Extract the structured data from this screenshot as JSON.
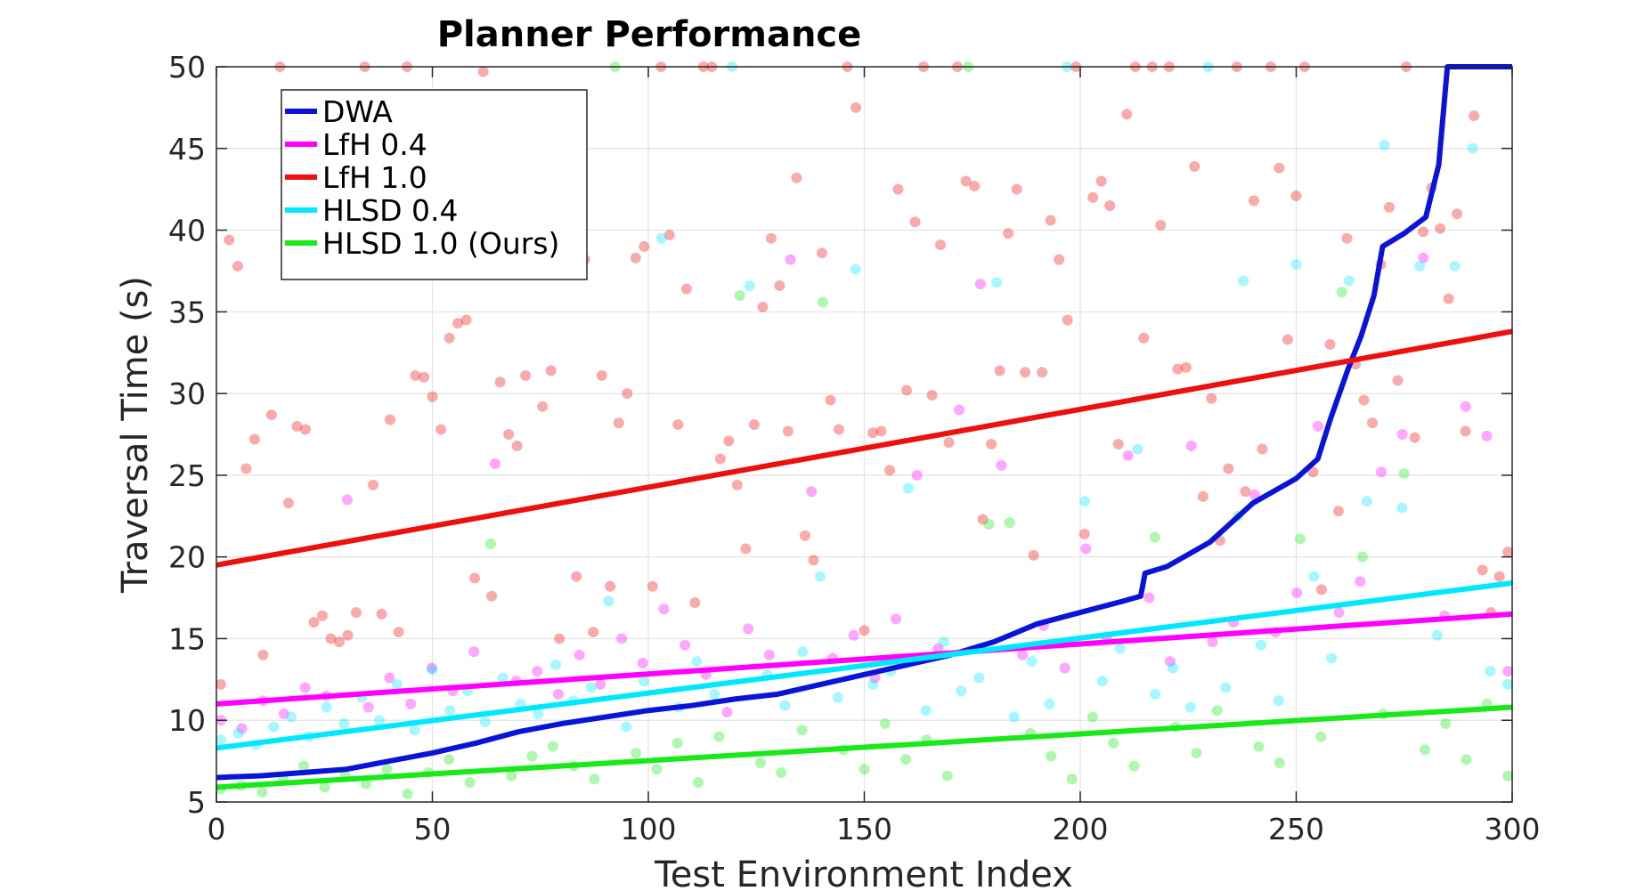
{
  "chart_data": {
    "type": "scatter",
    "title": "Planner Performance",
    "xlabel": "Test Environment Index",
    "ylabel": "Traversal Time (s)",
    "xlim": [
      0,
      300
    ],
    "ylim": [
      5,
      50
    ],
    "xticks": [
      "0",
      "50",
      "100",
      "150",
      "200",
      "250",
      "300"
    ],
    "yticks": [
      "5",
      "10",
      "15",
      "20",
      "25",
      "30",
      "35",
      "40",
      "45",
      "50"
    ],
    "grid": true,
    "legend_placement": "top-left",
    "series": [
      {
        "name": "DWA",
        "color": "#0a14d8",
        "sorted_curve": {
          "x": [
            0,
            10,
            20,
            30,
            40,
            50,
            60,
            70,
            80,
            90,
            100,
            110,
            120,
            130,
            140,
            150,
            160,
            170,
            180,
            190,
            200,
            210,
            214,
            215,
            220,
            230,
            240,
            250,
            255,
            258,
            262,
            265,
            268,
            270,
            275,
            280,
            283,
            285,
            300
          ],
          "y": [
            6.5,
            6.6,
            6.8,
            7.0,
            7.5,
            8.0,
            8.6,
            9.3,
            9.8,
            10.2,
            10.6,
            10.9,
            11.3,
            11.6,
            12.2,
            12.8,
            13.4,
            14.0,
            14.8,
            15.9,
            16.6,
            17.3,
            17.6,
            19.0,
            19.4,
            20.9,
            23.3,
            24.8,
            26.0,
            28.5,
            31.5,
            33.5,
            36.0,
            39.0,
            39.8,
            40.8,
            44.0,
            50.0,
            50.0
          ]
        },
        "scatter_y": []
      },
      {
        "name": "LfH 0.4",
        "color": "#ff00ff",
        "trend": {
          "x": [
            0,
            300
          ],
          "y": [
            11.0,
            16.5
          ]
        },
        "scatter_y": [
          10.0,
          9.5,
          11.2,
          10.4,
          12.0,
          11.5,
          23.5,
          10.8,
          12.6,
          11.0,
          13.2,
          11.8,
          14.2,
          25.7,
          12.4,
          13.0,
          11.6,
          14.0,
          12.2,
          15.0,
          13.5,
          16.8,
          14.6,
          12.8,
          10.5,
          15.6,
          14.0,
          38.2,
          24.0,
          13.8,
          15.2,
          12.6,
          16.2,
          25.0,
          14.4,
          29.0,
          36.7,
          25.6,
          14.0,
          15.8,
          13.2,
          20.5,
          15.0,
          26.2,
          17.5,
          13.6,
          26.8,
          14.8,
          16.0,
          23.8,
          15.4,
          17.8,
          28.0,
          16.6,
          18.5,
          25.2,
          27.5,
          38.3,
          16.4,
          29.2,
          27.4,
          13.0
        ]
      },
      {
        "name": "LfH 1.0",
        "color": "#ee0f0f",
        "trend": {
          "x": [
            0,
            300
          ],
          "y": [
            19.5,
            33.8
          ]
        },
        "scatter_y": [
          12.2,
          39.4,
          37.8,
          25.4,
          27.2,
          14.0,
          28.7,
          50.0,
          23.3,
          28.0,
          27.8,
          16.0,
          16.4,
          15.0,
          14.8,
          15.2,
          16.6,
          50.0,
          24.4,
          16.5,
          28.4,
          15.4,
          50.0,
          31.1,
          31.0,
          29.8,
          27.8,
          33.4,
          34.3,
          34.5,
          18.7,
          49.7,
          17.6,
          30.7,
          27.5,
          26.8,
          31.1,
          37.8,
          29.2,
          31.4,
          15.0,
          46.9,
          18.8,
          38.2,
          15.4,
          31.1,
          18.2,
          28.2,
          30.0,
          38.3,
          39.0,
          18.2,
          50.0,
          39.7,
          28.1,
          36.4,
          17.2,
          50.0,
          50.0,
          26.0,
          27.1,
          24.4,
          20.5,
          28.1,
          35.3,
          39.5,
          36.6,
          27.7,
          43.2,
          21.3,
          19.8,
          38.6,
          29.6,
          27.8,
          50.0,
          47.5,
          15.5,
          27.6,
          27.7,
          25.3,
          42.5,
          30.2,
          40.5,
          50.0,
          29.9,
          39.1,
          27.0,
          50.0,
          43.0,
          42.7,
          22.3,
          26.9,
          31.4,
          39.8,
          42.5,
          31.3,
          20.1,
          31.3,
          40.6,
          38.2,
          34.5,
          50.0,
          21.4,
          42.0,
          43.0,
          41.5,
          26.9,
          47.1,
          50.0,
          33.4,
          50.0,
          40.3,
          50.0,
          31.5,
          31.6,
          43.9,
          23.7,
          29.7,
          21.0,
          25.4,
          50.0,
          24.0,
          41.8,
          26.6,
          50.0,
          43.8,
          33.3,
          42.1,
          50.0,
          25.2,
          18.0,
          33.0,
          22.8,
          39.5,
          31.8,
          29.6,
          28.2,
          37.9,
          41.4,
          30.8,
          50.0,
          27.3,
          39.9,
          42.6,
          40.1,
          35.8,
          41.0,
          27.7,
          47.0,
          19.2,
          16.6,
          18.8,
          20.3
        ]
      },
      {
        "name": "HLSD 0.4",
        "color": "#00e8ff",
        "trend": {
          "x": [
            0,
            300
          ],
          "y": [
            8.3,
            18.4
          ]
        },
        "scatter_y": [
          8.8,
          9.2,
          8.5,
          9.6,
          10.2,
          9.0,
          10.8,
          9.8,
          11.4,
          10.0,
          12.2,
          9.4,
          13.1,
          10.6,
          11.8,
          9.9,
          12.6,
          11.0,
          10.4,
          13.4,
          11.2,
          12.0,
          17.3,
          9.6,
          12.4,
          39.5,
          10.8,
          13.6,
          11.6,
          50.0,
          36.6,
          12.8,
          10.9,
          14.2,
          18.8,
          11.4,
          37.6,
          12.2,
          13.0,
          24.2,
          10.6,
          14.8,
          11.8,
          12.6,
          36.8,
          10.2,
          13.6,
          11.0,
          50.0,
          23.4,
          12.4,
          14.4,
          26.6,
          11.6,
          13.2,
          10.8,
          50.0,
          12.0,
          36.9,
          14.6,
          11.2,
          37.9,
          18.8,
          13.8,
          36.9,
          23.4,
          45.2,
          23.0,
          37.8,
          15.2,
          37.8,
          45.0,
          13.0,
          12.2
        ]
      },
      {
        "name": "HLSD 1.0 (Ours)",
        "color": "#19e819",
        "trend": {
          "x": [
            0,
            300
          ],
          "y": [
            5.9,
            10.8
          ]
        },
        "scatter_y": [
          5.8,
          6.0,
          5.6,
          6.4,
          7.2,
          5.9,
          6.6,
          6.1,
          7.0,
          5.5,
          6.8,
          7.6,
          6.2,
          20.8,
          6.6,
          7.8,
          8.4,
          7.2,
          6.4,
          50.0,
          8.0,
          7.0,
          8.6,
          6.2,
          9.0,
          36.0,
          7.4,
          6.8,
          9.4,
          35.6,
          8.2,
          7.0,
          9.8,
          7.6,
          8.8,
          6.6,
          50.0,
          22.0,
          22.1,
          9.2,
          7.8,
          6.4,
          10.2,
          8.6,
          7.2,
          21.2,
          9.6,
          8.0,
          10.6,
          22.5,
          8.4,
          7.4,
          21.1,
          9.0,
          36.2,
          20.0,
          10.4,
          25.1,
          8.2,
          9.8,
          7.6,
          11.0,
          6.6
        ]
      }
    ]
  }
}
